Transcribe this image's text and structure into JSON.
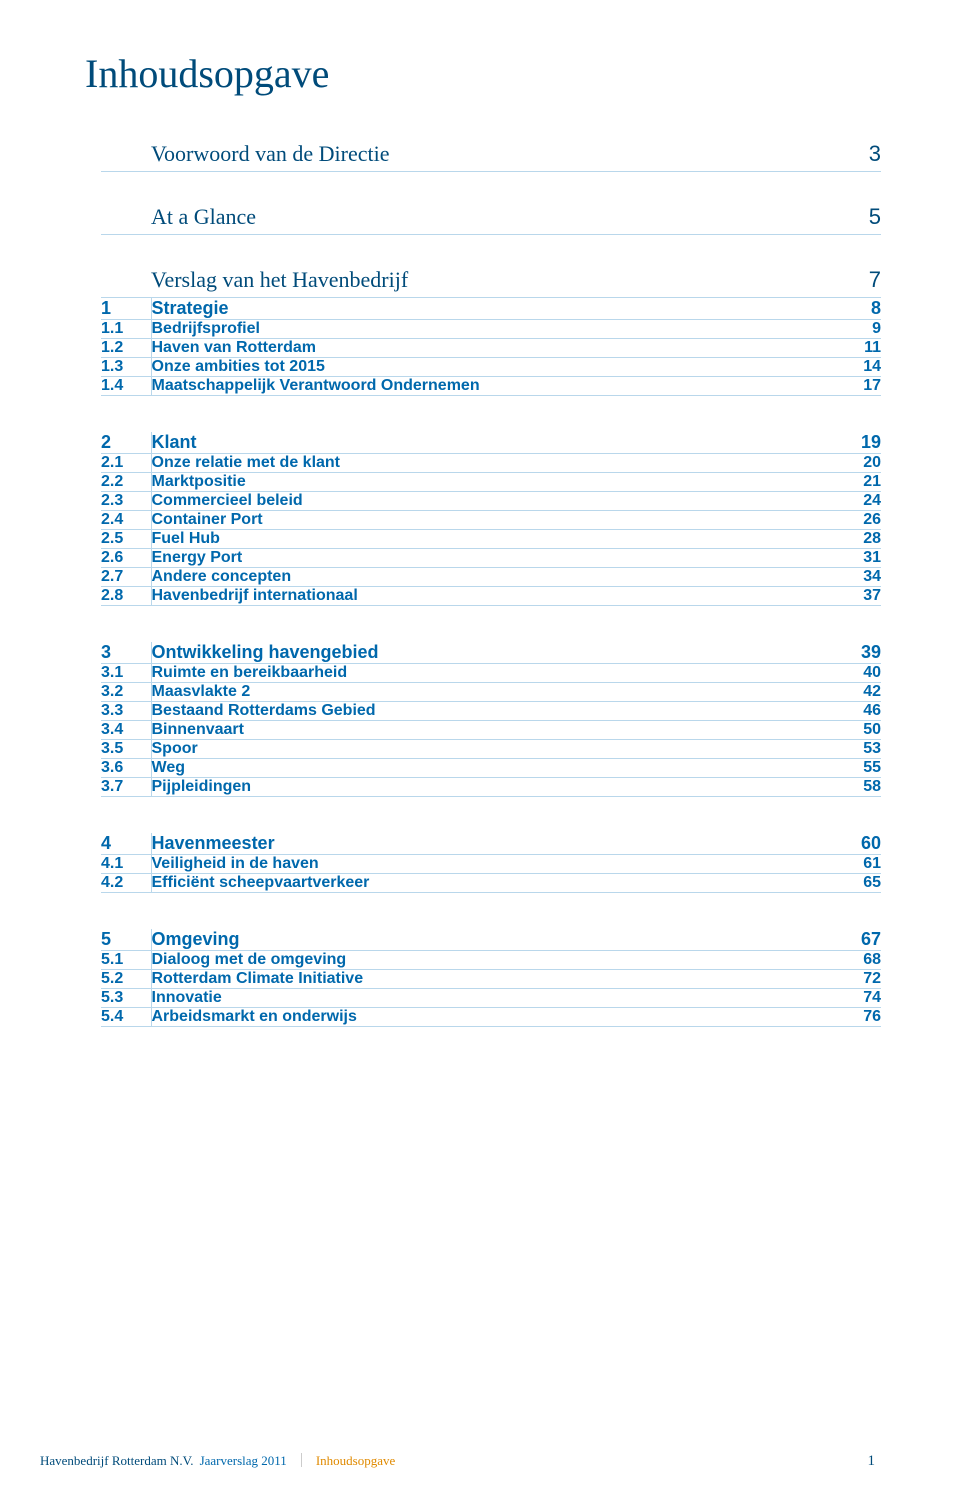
{
  "title": "Inhoudsopgave",
  "colors": {
    "heading": "#004b7a",
    "link": "#0068ac",
    "rule": "#b9d7eb",
    "crumb": "#e08a00",
    "background": "#ffffff"
  },
  "typography": {
    "title_fontsize": 40,
    "major_fontsize": 22,
    "chapter_fontsize": 18,
    "row_fontsize": 16,
    "footer_fontsize": 13
  },
  "sections": [
    {
      "type": "major",
      "num": "",
      "title": "Voorwoord van de Directie",
      "page": "3"
    },
    {
      "type": "major",
      "num": "",
      "title": "At a Glance",
      "page": "5"
    },
    {
      "type": "major",
      "num": "",
      "title": "Verslag van het Havenbedrijf",
      "page": "7",
      "chapter": {
        "num": "1",
        "title": "Strategie",
        "page": "8"
      },
      "rows": [
        {
          "num": "1.1",
          "title": "Bedrijfsprofiel",
          "page": "9"
        },
        {
          "num": "1.2",
          "title": "Haven van Rotterdam",
          "page": "11"
        },
        {
          "num": "1.3",
          "title": "Onze ambities tot 2015",
          "page": "14"
        },
        {
          "num": "1.4",
          "title": "Maatschappelijk Verantwoord Ondernemen",
          "page": "17"
        }
      ]
    },
    {
      "type": "chapter",
      "num": "2",
      "title": "Klant",
      "page": "19",
      "rows": [
        {
          "num": "2.1",
          "title": "Onze relatie met de klant",
          "page": "20"
        },
        {
          "num": "2.2",
          "title": "Marktpositie",
          "page": "21"
        },
        {
          "num": "2.3",
          "title": "Commercieel beleid",
          "page": "24"
        },
        {
          "num": "2.4",
          "title": "Container Port",
          "page": "26"
        },
        {
          "num": "2.5",
          "title": "Fuel Hub",
          "page": "28"
        },
        {
          "num": "2.6",
          "title": "Energy Port",
          "page": "31"
        },
        {
          "num": "2.7",
          "title": "Andere concepten",
          "page": "34"
        },
        {
          "num": "2.8",
          "title": "Havenbedrijf internationaal",
          "page": "37"
        }
      ]
    },
    {
      "type": "chapter",
      "num": "3",
      "title": "Ontwikkeling havengebied",
      "page": "39",
      "rows": [
        {
          "num": "3.1",
          "title": "Ruimte en bereikbaarheid",
          "page": "40"
        },
        {
          "num": "3.2",
          "title": "Maasvlakte 2",
          "page": "42"
        },
        {
          "num": "3.3",
          "title": "Bestaand Rotterdams Gebied",
          "page": "46"
        },
        {
          "num": "3.4",
          "title": "Binnenvaart",
          "page": "50"
        },
        {
          "num": "3.5",
          "title": "Spoor",
          "page": "53"
        },
        {
          "num": "3.6",
          "title": "Weg",
          "page": "55"
        },
        {
          "num": "3.7",
          "title": "Pijpleidingen",
          "page": "58"
        }
      ]
    },
    {
      "type": "chapter",
      "num": "4",
      "title": "Havenmeester",
      "page": "60",
      "rows": [
        {
          "num": "4.1",
          "title": "Veiligheid in de haven",
          "page": "61"
        },
        {
          "num": "4.2",
          "title": "Efficiënt scheepvaartverkeer",
          "page": "65"
        }
      ]
    },
    {
      "type": "chapter",
      "num": "5",
      "title": "Omgeving",
      "page": "67",
      "rows": [
        {
          "num": "5.1",
          "title": "Dialoog met de omgeving",
          "page": "68"
        },
        {
          "num": "5.2",
          "title": "Rotterdam Climate Initiative",
          "page": "72"
        },
        {
          "num": "5.3",
          "title": "Innovatie",
          "page": "74"
        },
        {
          "num": "5.4",
          "title": "Arbeidsmarkt en onderwijs",
          "page": "76"
        }
      ]
    }
  ],
  "footer": {
    "company": "Havenbedrijf Rotterdam N.V.",
    "report": "Jaarverslag 2011",
    "crumb": "Inhoudsopgave",
    "pagenum": "1"
  }
}
